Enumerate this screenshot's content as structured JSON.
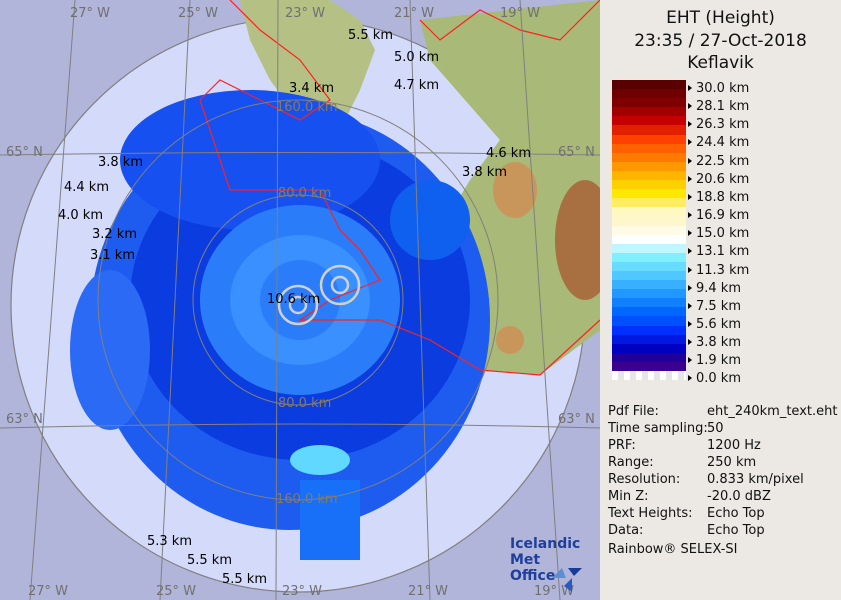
{
  "panel": {
    "title": "EHT (Height)",
    "datetime": "23:35 / 27-Oct-2018",
    "site": "Keflavik"
  },
  "legend": {
    "colors": [
      "#5a0000",
      "#6e0000",
      "#7e0000",
      "#a00000",
      "#c40000",
      "#e02000",
      "#ff4000",
      "#ff6000",
      "#ff7a00",
      "#ff9800",
      "#ffb400",
      "#ffd000",
      "#ffe800",
      "#ffec60",
      "#fff8c0",
      "#fff7cc",
      "#fffbe6",
      "#ffffff",
      "#c0f6ff",
      "#80f0ff",
      "#68dcff",
      "#50c8ff",
      "#38b0ff",
      "#2098ff",
      "#1080ff",
      "#0068ff",
      "#0050ff",
      "#0030ff",
      "#0018e0",
      "#0000c0",
      "#200098",
      "#3a0090"
    ],
    "ticks": [
      "30.0 km",
      "28.1 km",
      "26.3 km",
      "24.4 km",
      "22.5 km",
      "20.6 km",
      "18.8 km",
      "16.9 km",
      "15.0 km",
      "13.1 km",
      "11.3 km",
      "9.4 km",
      "7.5 km",
      "5.6 km",
      "3.8 km",
      "1.9 km",
      "0.0 km"
    ]
  },
  "info": [
    {
      "label": "Pdf File:",
      "value": "eht_240km_text.eht"
    },
    {
      "label": "Time sampling:",
      "value": "50"
    },
    {
      "label": "PRF:",
      "value": "1200 Hz"
    },
    {
      "label": "Range:",
      "value": "250 km"
    },
    {
      "label": "Resolution:",
      "value": "0.833 km/pixel"
    },
    {
      "label": "Min Z:",
      "value": "-20.0 dBZ"
    },
    {
      "label": "Text Heights:",
      "value": "Echo Top"
    },
    {
      "label": "Data:",
      "value": "Echo Top"
    }
  ],
  "credit": "Rainbow® SELEX-SI",
  "logo": {
    "line1": "Icelandic Met",
    "line2": "Office"
  },
  "map": {
    "grid_labels": {
      "top": [
        "27° W",
        "25° W",
        "23° W",
        "21° W",
        "19° W"
      ],
      "bottom": [
        "27° W",
        "25° W",
        "23° W",
        "21° W",
        "19° W"
      ],
      "lat_left": [
        "65° N",
        "63° N"
      ],
      "lat_right": [
        "65° N",
        "63° N"
      ]
    },
    "ring_labels": [
      "80.0 km",
      "80.0 km",
      "160.0 km",
      "160.0 km"
    ],
    "height_labels": [
      "5.5 km",
      "5.0 km",
      "4.7 km",
      "3.4 km",
      "4.6 km",
      "3.8 km",
      "3.8 km",
      "4.4 km",
      "4.0 km",
      "3.2 km",
      "3.1 km",
      "10.6 km",
      "5.3 km",
      "5.5 km",
      "5.5 km"
    ],
    "colors": {
      "outside": "#b1b5da",
      "range_disc": "#d4dafa",
      "coastline": "#ff2020",
      "land": "#b8c48a"
    }
  }
}
